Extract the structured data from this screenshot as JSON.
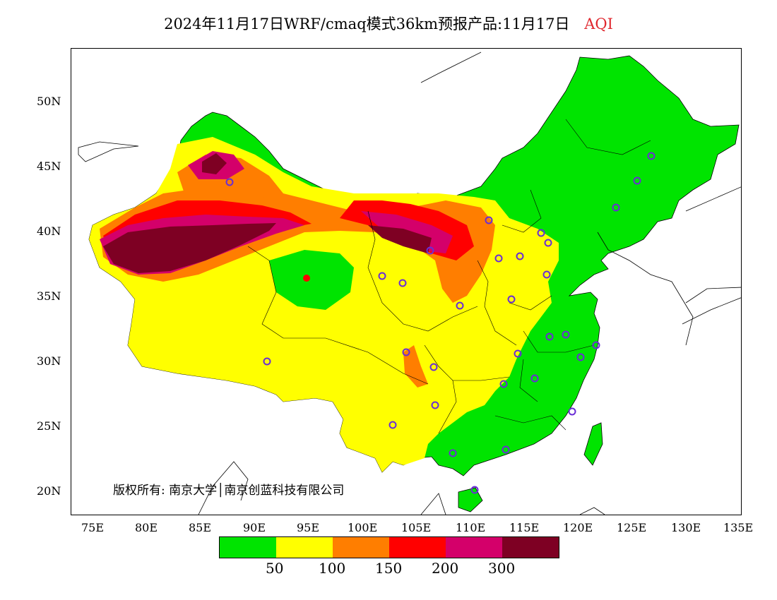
{
  "title": {
    "text": "2024年11月17日WRF/cmaq模式36km预报产品:11月17日",
    "aqi_label": "AQI",
    "aqi_color": "#e0282f"
  },
  "map": {
    "lat_labels": [
      "50N",
      "45N",
      "40N",
      "35N",
      "30N",
      "25N",
      "20N"
    ],
    "lon_labels": [
      "75E",
      "80E",
      "85E",
      "90E",
      "95E",
      "100E",
      "105E",
      "110E",
      "115E",
      "120E",
      "125E",
      "130E",
      "135E"
    ],
    "copyright": "版权所有: 南京大学│南京创蓝科技有限公司"
  },
  "legend": {
    "colors": [
      "#00e400",
      "#ffff00",
      "#ff7e00",
      "#ff0000",
      "#d4006a",
      "#7e0023"
    ],
    "ticks": [
      "50",
      "100",
      "150",
      "200",
      "300"
    ]
  }
}
